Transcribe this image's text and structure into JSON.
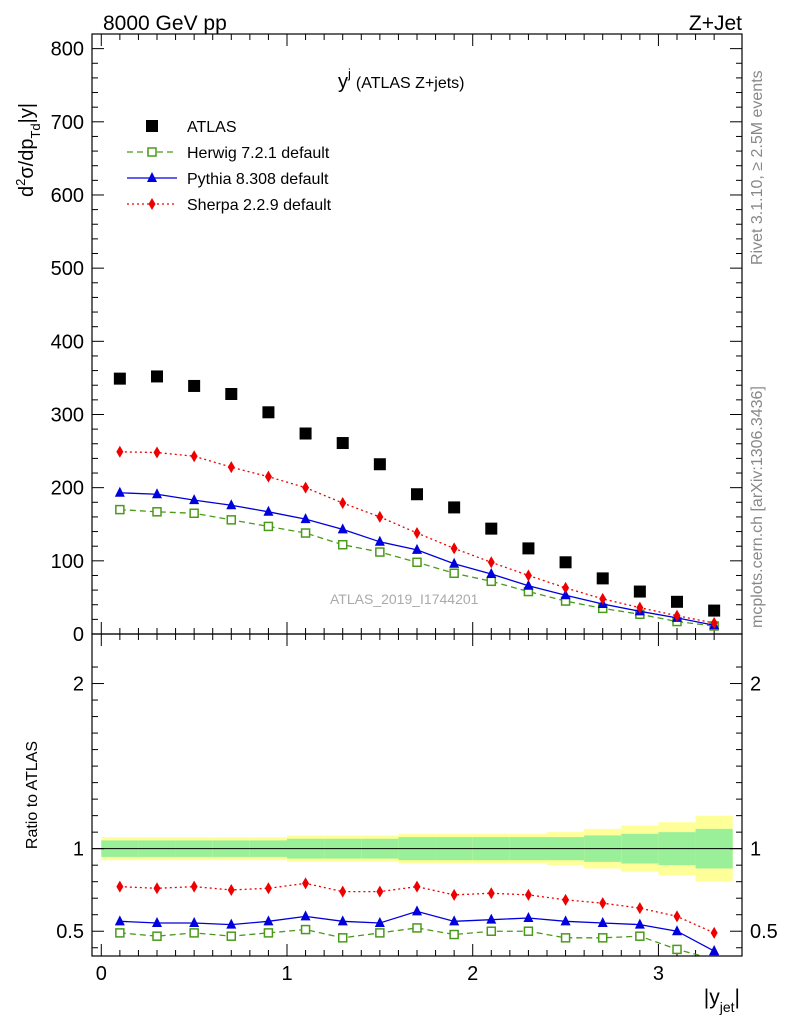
{
  "header": {
    "left_label": "8000 GeV pp",
    "right_label": "Z+Jet"
  },
  "side_labels": {
    "rivet": "Rivet 3.1.10, ≥ 2.5M events",
    "mcplots": "mcplots.cern.ch [arXiv:1306.3436]"
  },
  "chart_data": [
    {
      "type": "scatter",
      "title": "y",
      "title_superscript": "j",
      "title_suffix": "(ATLAS Z+jets)",
      "watermark": "ATLAS_2019_I1744201",
      "ylabel": "d²σ/dp_Td|y|",
      "ylim": [
        0,
        820
      ],
      "xlim": [
        -0.05,
        3.45
      ],
      "yticks": [
        0,
        100,
        200,
        300,
        400,
        500,
        600,
        700,
        800
      ],
      "x": [
        0.1,
        0.3,
        0.5,
        0.7,
        0.9,
        1.1,
        1.3,
        1.5,
        1.7,
        1.9,
        2.1,
        2.3,
        2.5,
        2.7,
        2.9,
        3.1,
        3.3
      ],
      "series": [
        {
          "name": "ATLAS",
          "color": "#000000",
          "marker": "square",
          "line": "none",
          "values": [
            349,
            352,
            339,
            328,
            303,
            274,
            261,
            232,
            191,
            173,
            144,
            117,
            98,
            76,
            58,
            44,
            32
          ]
        },
        {
          "name": "Herwig 7.2.1 default",
          "color": "#4a9a1a",
          "marker": "open-square",
          "line": "dashed",
          "values": [
            170,
            167,
            165,
            156,
            147,
            138,
            122,
            112,
            98,
            83,
            72,
            58,
            45,
            35,
            27,
            17,
            11
          ]
        },
        {
          "name": "Pythia 8.308 default",
          "color": "#0000dd",
          "marker": "triangle",
          "line": "solid",
          "values": [
            193,
            191,
            183,
            176,
            167,
            157,
            143,
            126,
            115,
            96,
            82,
            66,
            53,
            41,
            31,
            22,
            12
          ]
        },
        {
          "name": "Sherpa 2.2.9 default",
          "color": "#ee0000",
          "marker": "diamond",
          "line": "dotted",
          "values": [
            249,
            248,
            243,
            228,
            215,
            200,
            179,
            160,
            138,
            117,
            98,
            80,
            63,
            48,
            36,
            25,
            15
          ]
        }
      ]
    },
    {
      "type": "line",
      "ylabel": "Ratio to ATLAS",
      "xlabel": "|y_jet|",
      "ylim": [
        0.35,
        2.3
      ],
      "xlim": [
        -0.05,
        3.45
      ],
      "yticks": [
        0.5,
        1,
        2
      ],
      "xticks": [
        0,
        1,
        2,
        3
      ],
      "band_inner": [
        0.05,
        0.05,
        0.05,
        0.05,
        0.05,
        0.06,
        0.06,
        0.06,
        0.07,
        0.07,
        0.07,
        0.07,
        0.07,
        0.08,
        0.09,
        0.1,
        0.12
      ],
      "band_outer": [
        0.07,
        0.07,
        0.07,
        0.07,
        0.07,
        0.08,
        0.08,
        0.08,
        0.09,
        0.09,
        0.09,
        0.09,
        0.1,
        0.12,
        0.14,
        0.16,
        0.2
      ],
      "x": [
        0.1,
        0.3,
        0.5,
        0.7,
        0.9,
        1.1,
        1.3,
        1.5,
        1.7,
        1.9,
        2.1,
        2.3,
        2.5,
        2.7,
        2.9,
        3.1,
        3.3
      ],
      "series": [
        {
          "color": "#4a9a1a",
          "marker": "open-square",
          "line": "dashed",
          "values": [
            0.49,
            0.47,
            0.49,
            0.47,
            0.49,
            0.51,
            0.46,
            0.49,
            0.52,
            0.48,
            0.5,
            0.5,
            0.46,
            0.46,
            0.47,
            0.39,
            0.33
          ]
        },
        {
          "color": "#0000dd",
          "marker": "triangle",
          "line": "solid",
          "values": [
            0.56,
            0.55,
            0.55,
            0.54,
            0.56,
            0.59,
            0.56,
            0.55,
            0.62,
            0.56,
            0.57,
            0.58,
            0.56,
            0.55,
            0.54,
            0.5,
            0.38
          ]
        },
        {
          "color": "#ee0000",
          "marker": "diamond",
          "line": "dotted",
          "values": [
            0.77,
            0.76,
            0.77,
            0.75,
            0.76,
            0.79,
            0.74,
            0.74,
            0.77,
            0.72,
            0.73,
            0.72,
            0.69,
            0.67,
            0.64,
            0.59,
            0.49
          ]
        }
      ]
    }
  ]
}
